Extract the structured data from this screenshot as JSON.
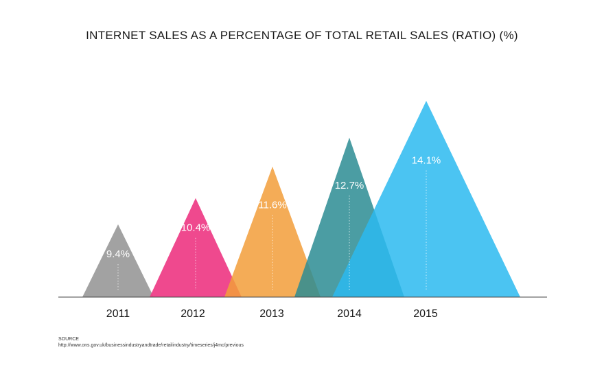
{
  "chart_data": {
    "type": "area",
    "title": "INTERNET SALES AS A PERCENTAGE OF TOTAL RETAIL SALES (RATIO) (%)",
    "categories": [
      "2011",
      "2012",
      "2013",
      "2014",
      "2015"
    ],
    "values": [
      9.4,
      10.4,
      11.6,
      12.7,
      14.1
    ],
    "value_labels": [
      "9.4%",
      "10.4%",
      "11.6%",
      "12.7%",
      "14.1%"
    ],
    "colors": [
      "#a2a2a2",
      "#ee3f88",
      "#f29e3a",
      "#2b8c93",
      "#2bbaf0"
    ],
    "opacity": [
      1,
      0.95,
      0.85,
      0.85,
      0.85
    ],
    "xlabel": "",
    "ylabel": "",
    "grid": false,
    "legend": "none",
    "source": {
      "heading": "SOURCE",
      "url": "http://www.ons.gov.uk/businessindustryandtrade/retailindustry/timeseries/j4mc/previous"
    }
  }
}
